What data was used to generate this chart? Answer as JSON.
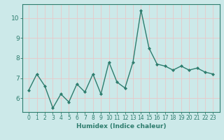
{
  "x": [
    0,
    1,
    2,
    3,
    4,
    5,
    6,
    7,
    8,
    9,
    10,
    11,
    12,
    13,
    14,
    15,
    16,
    17,
    18,
    19,
    20,
    21,
    22,
    23
  ],
  "y": [
    6.4,
    7.2,
    6.6,
    5.5,
    6.2,
    5.8,
    6.7,
    6.3,
    7.2,
    6.2,
    7.8,
    6.8,
    6.5,
    7.8,
    10.4,
    8.5,
    7.7,
    7.6,
    7.4,
    7.6,
    7.4,
    7.5,
    7.3,
    7.2
  ],
  "line_color": "#2e7d6e",
  "marker": "D",
  "marker_size": 2.0,
  "linewidth": 1.0,
  "xlabel": "Humidex (Indice chaleur)",
  "ylim": [
    5.3,
    10.7
  ],
  "yticks": [
    6,
    7,
    8,
    9,
    10
  ],
  "xticks": [
    0,
    1,
    2,
    3,
    4,
    5,
    6,
    7,
    8,
    9,
    10,
    11,
    12,
    13,
    14,
    15,
    16,
    17,
    18,
    19,
    20,
    21,
    22,
    23
  ],
  "bg_color": "#cce9e9",
  "grid_color": "#e8c8c8",
  "tick_fontsize": 5.5,
  "xlabel_fontsize": 6.5
}
